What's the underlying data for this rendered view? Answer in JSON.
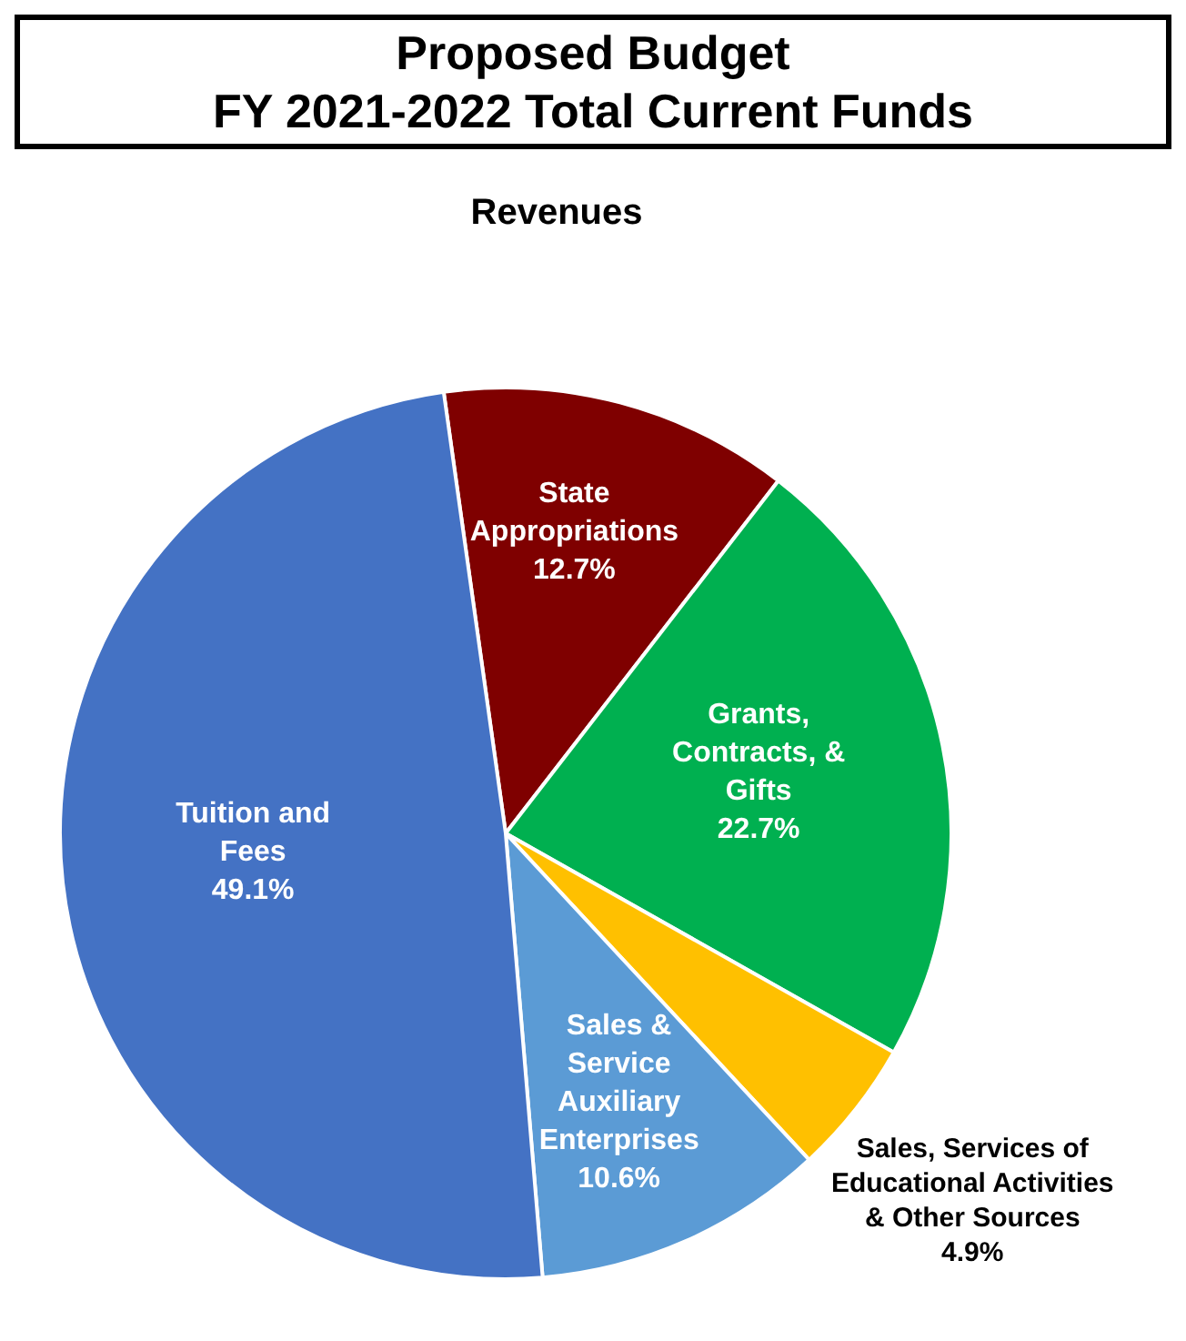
{
  "chart_data": {
    "type": "pie",
    "title": "Proposed Budget\nFY 2021-2022 Total Current Funds",
    "subtitle": "Revenues",
    "categories": [
      "State Appropriations",
      "Grants, Contracts, & Gifts",
      "Sales, Services of Educational Activities & Other Sources",
      "Sales & Service Auxiliary Enterprises",
      "Tuition and Fees"
    ],
    "values": [
      12.7,
      22.7,
      4.9,
      10.6,
      49.1
    ],
    "colors": [
      "#7f0000",
      "#00b050",
      "#ffc000",
      "#5b9bd5",
      "#4472c4"
    ],
    "value_labels": [
      "12.7%",
      "22.7%",
      "4.9%",
      "10.6%",
      "49.1%"
    ],
    "legend": false
  }
}
